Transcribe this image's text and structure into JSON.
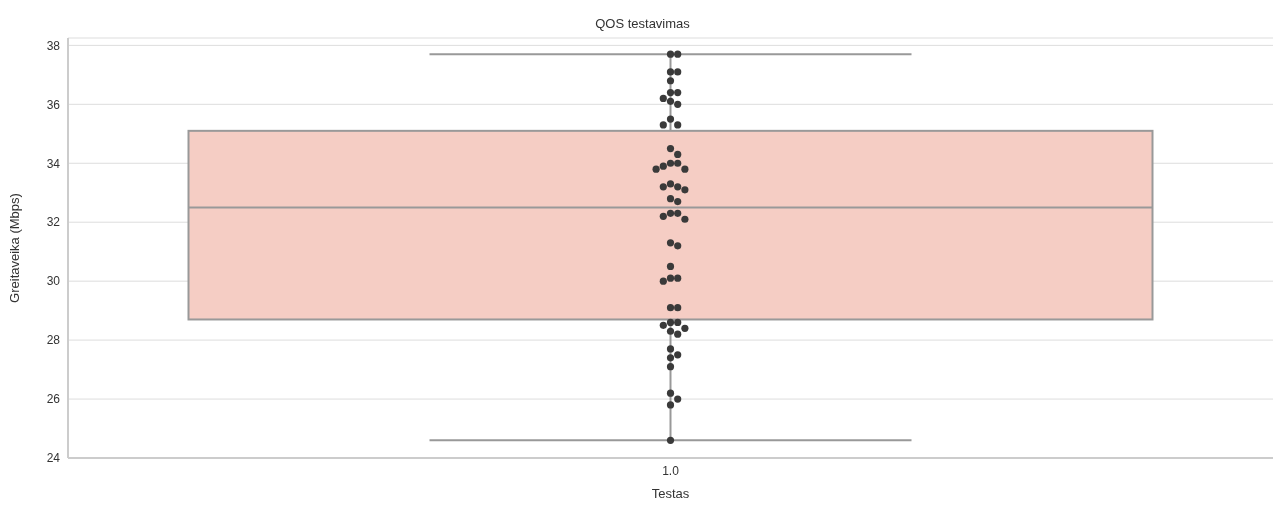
{
  "chart_data": {
    "type": "box",
    "title": "QOS testavimas",
    "xlabel": "Testas",
    "ylabel": "Greitaveika (Mbps)",
    "categories": [
      "1.0"
    ],
    "ylim": [
      24,
      38.25
    ],
    "yticks": [
      24,
      26,
      28,
      30,
      32,
      34,
      36,
      38
    ],
    "grid": "y",
    "series": [
      {
        "type": "box",
        "color": "#f5cdc4",
        "boxes": [
          {
            "low": 24.6,
            "q1": 28.7,
            "median": 32.5,
            "q3": 35.1,
            "high": 37.7
          }
        ]
      },
      {
        "type": "scatter",
        "color": "#3a3a3a",
        "x": [
          "1.0",
          "1.0",
          "1.0",
          "1.0",
          "1.0",
          "1.0",
          "1.0",
          "1.0",
          "1.0",
          "1.0",
          "1.0",
          "1.0",
          "1.0",
          "1.0",
          "1.0",
          "1.0",
          "1.0",
          "1.0",
          "1.0",
          "1.0",
          "1.0",
          "1.0",
          "1.0",
          "1.0",
          "1.0",
          "1.0",
          "1.0",
          "1.0",
          "1.0",
          "1.0",
          "1.0",
          "1.0",
          "1.0",
          "1.0",
          "1.0",
          "1.0",
          "1.0",
          "1.0",
          "1.0",
          "1.0",
          "1.0",
          "1.0",
          "1.0",
          "1.0",
          "1.0",
          "1.0",
          "1.0",
          "1.0",
          "1.0",
          "1.0",
          "1.0",
          "1.0"
        ],
        "values": [
          37.7,
          37.7,
          37.1,
          37.1,
          36.8,
          36.4,
          36.4,
          36.2,
          36.1,
          36.0,
          35.5,
          35.3,
          35.3,
          34.5,
          34.3,
          34.0,
          34.0,
          33.9,
          33.8,
          33.8,
          33.3,
          33.2,
          33.2,
          33.1,
          32.8,
          32.7,
          32.3,
          32.3,
          32.2,
          32.1,
          31.3,
          31.2,
          30.5,
          30.1,
          30.1,
          30.0,
          29.1,
          29.1,
          28.6,
          28.6,
          28.5,
          28.4,
          28.3,
          28.2,
          27.7,
          27.5,
          27.4,
          27.1,
          26.2,
          26.0,
          25.8,
          24.6
        ]
      }
    ]
  }
}
